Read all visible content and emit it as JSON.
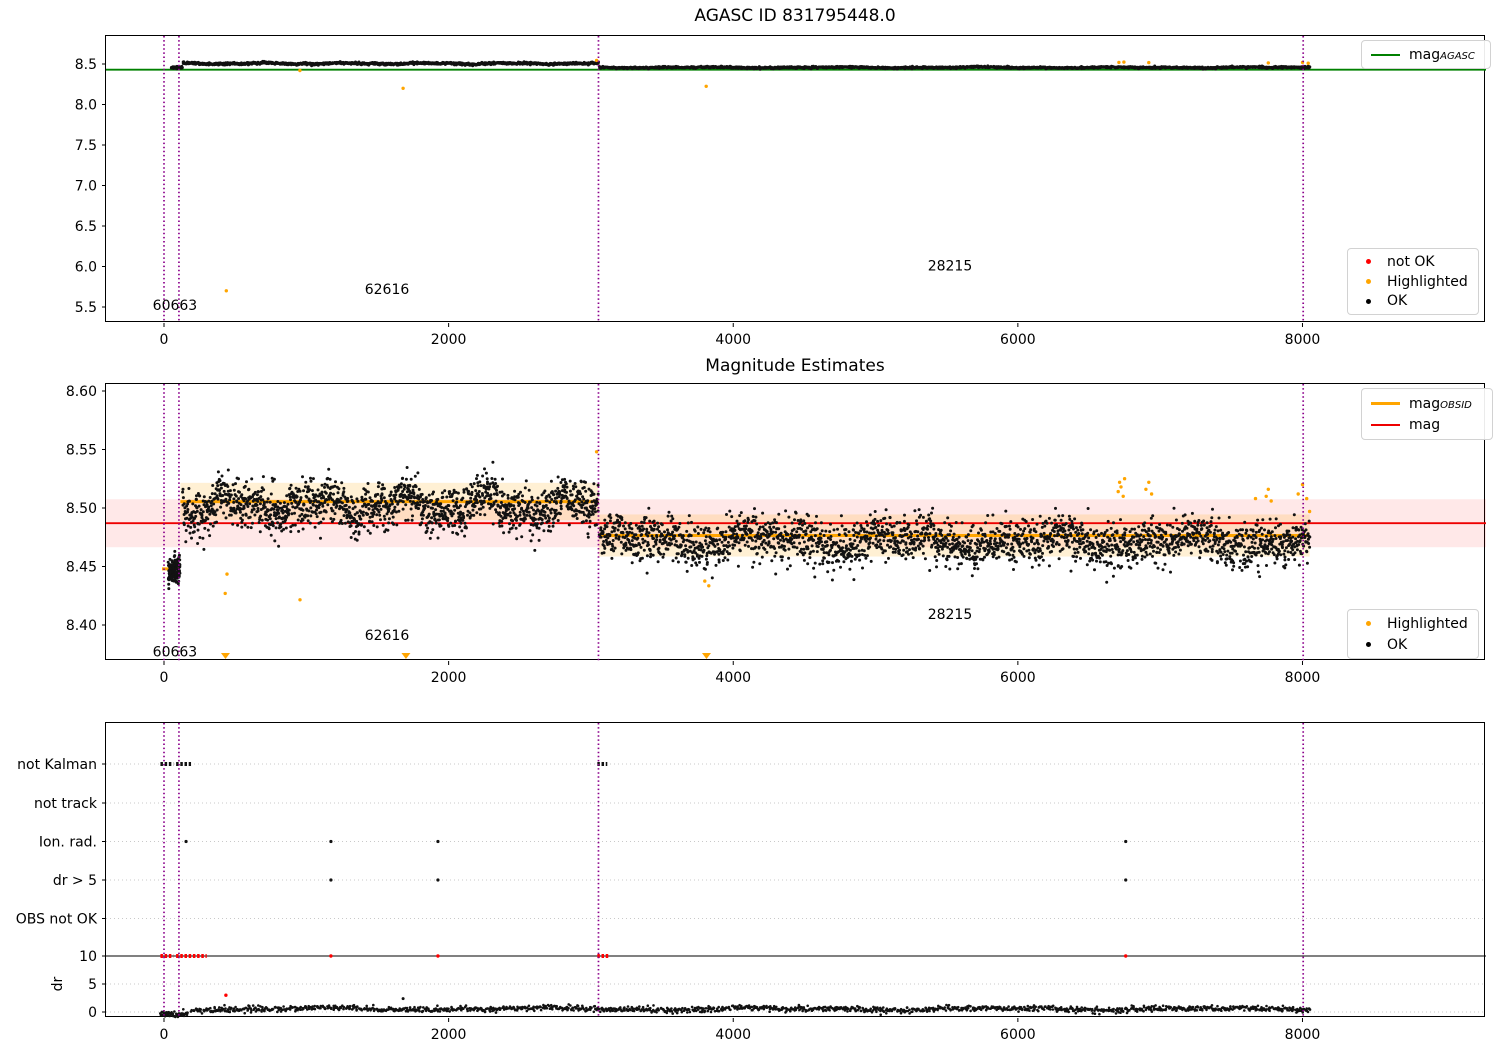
{
  "colors": {
    "ok": "#121212",
    "highlighted": "#ffa500",
    "not_ok": "#ff0000",
    "mag_agasc": "#008000",
    "mag_line": "#ee0000",
    "mag_obsid": "#ffa500",
    "vline": "#8b008b",
    "band_red": "rgba(255,0,0,0.09)",
    "band_orange": "rgba(255,166,0,0.17)",
    "grid": "#c9c9c9",
    "axis": "#000000"
  },
  "chart_data": [
    {
      "type": "scatter",
      "title": "AGASC ID 831795448.0",
      "xlim": [
        -410,
        9300
      ],
      "ylim": [
        5.3,
        8.85
      ],
      "xtick_vals": [
        0,
        2000,
        4000,
        6000,
        8000
      ],
      "xticks": [
        "0",
        "2000",
        "4000",
        "6000",
        "8000"
      ],
      "ytick_vals": [
        5.5,
        6.0,
        6.5,
        7.0,
        7.5,
        8.0,
        8.5
      ],
      "yticks": [
        "5.5",
        "6.0",
        "6.5",
        "7.0",
        "7.5",
        "8.0",
        "8.5"
      ],
      "mag_agasc": 8.43,
      "vlines": [
        0,
        105,
        3053,
        8005
      ],
      "ok_clusters": [
        {
          "x0": 52,
          "x1": 128,
          "y": 8.457,
          "amp": 0.003,
          "spread": 0.005,
          "n": 90,
          "seed": 11
        },
        {
          "x0": 132,
          "x1": 3052,
          "y": 8.506,
          "amp": 0.011,
          "spread": 0.0065,
          "n": 1150,
          "seed": 12
        },
        {
          "x0": 3062,
          "x1": 8052,
          "y": 8.457,
          "amp": 0.007,
          "spread": 0.0055,
          "n": 1750,
          "seed": 13
        }
      ],
      "highlighted_points": [
        [
          438,
          5.7
        ],
        [
          955,
          8.42
        ],
        [
          1680,
          8.2
        ],
        [
          3040,
          8.545
        ],
        [
          3810,
          8.225
        ],
        [
          6710,
          8.52
        ],
        [
          6745,
          8.524
        ],
        [
          6920,
          8.517
        ],
        [
          7760,
          8.514
        ],
        [
          8000,
          8.52
        ],
        [
          8040,
          8.51
        ]
      ],
      "annotations": [
        {
          "text": "60663",
          "x": 77,
          "y": 5.46
        },
        {
          "text": "62616",
          "x": 1567,
          "y": 5.66
        },
        {
          "text": "28215",
          "x": 5523,
          "y": 5.95
        }
      ],
      "legend_line": {
        "main": "mag",
        "sub": "AGASC"
      },
      "legend_markers": {
        "items": [
          {
            "label": "not OK",
            "color": "#ff0000"
          },
          {
            "label": "Highlighted",
            "color": "#ffa500"
          },
          {
            "label": "OK",
            "color": "#000000"
          }
        ]
      }
    },
    {
      "type": "scatter",
      "title": "Magnitude Estimates",
      "xlim": [
        -410,
        9300
      ],
      "ylim": [
        8.369,
        8.606
      ],
      "xtick_vals": [
        0,
        2000,
        4000,
        6000,
        8000
      ],
      "xticks": [
        "0",
        "2000",
        "4000",
        "6000",
        "8000"
      ],
      "ytick_vals": [
        8.4,
        8.45,
        8.5,
        8.55,
        8.6
      ],
      "yticks": [
        "8.40",
        "8.45",
        "8.50",
        "8.55",
        "8.60"
      ],
      "mag": 8.487,
      "mag_band": [
        8.4665,
        8.5075
      ],
      "obsid_segments": [
        {
          "x0": -14,
          "x1": 100,
          "y": 8.448
        },
        {
          "x0": 115,
          "x1": 3053,
          "y": 8.5055,
          "band": [
            8.4895,
            8.5215
          ]
        },
        {
          "x0": 3053,
          "x1": 8050,
          "y": 8.4765,
          "band": [
            8.4585,
            8.4945
          ]
        }
      ],
      "vlines": [
        0,
        105,
        3053,
        8005
      ],
      "ok_clusters": [
        {
          "x0": 30,
          "x1": 112,
          "y": 8.4465,
          "amp": 0.004,
          "spread": 0.0055,
          "n": 140,
          "seed": 21
        },
        {
          "x0": 132,
          "x1": 3052,
          "y": 8.502,
          "amp": 0.012,
          "spread": 0.0095,
          "n": 1550,
          "seed": 22
        },
        {
          "x0": 3060,
          "x1": 8052,
          "y": 8.4715,
          "amp": 0.008,
          "spread": 0.0095,
          "n": 2350,
          "seed": 23
        }
      ],
      "highlighted_points": [
        [
          430,
          8.427
        ],
        [
          443,
          8.4435
        ],
        [
          956,
          8.4215
        ],
        [
          3040,
          8.548
        ],
        [
          3800,
          8.4375
        ],
        [
          3828,
          8.4335
        ],
        [
          6705,
          8.514
        ],
        [
          6715,
          8.522
        ],
        [
          6725,
          8.518
        ],
        [
          6740,
          8.51
        ],
        [
          6750,
          8.525
        ],
        [
          6900,
          8.516
        ],
        [
          6920,
          8.522
        ],
        [
          6940,
          8.512
        ],
        [
          7670,
          8.508
        ],
        [
          7745,
          8.51
        ],
        [
          7760,
          8.516
        ],
        [
          7780,
          8.506
        ],
        [
          7970,
          8.512
        ],
        [
          8000,
          8.52
        ],
        [
          8030,
          8.508
        ],
        [
          8050,
          8.497
        ]
      ],
      "low_triangles": [
        432,
        1700,
        3812
      ],
      "annotations": [
        {
          "text": "60663",
          "x": 77,
          "y": 8.373
        },
        {
          "text": "62616",
          "x": 1567,
          "y": 8.387
        },
        {
          "text": "28215",
          "x": 5523,
          "y": 8.405
        }
      ],
      "legend_lines": {
        "items": [
          {
            "main": "mag",
            "sub": "OBSID",
            "color": "#ffa500"
          },
          {
            "main": "mag",
            "sub": "",
            "color": "#ee0000"
          }
        ]
      },
      "legend_markers": {
        "items": [
          {
            "label": "Highlighted",
            "color": "#ffa500"
          },
          {
            "label": "OK",
            "color": "#000000"
          }
        ]
      }
    },
    {
      "type": "event-flags",
      "rows": [
        {
          "label": "not Kalman",
          "segments": [
            [
              -25,
              65
            ],
            [
              85,
              190
            ],
            [
              3045,
              3115
            ]
          ],
          "points": []
        },
        {
          "label": "not track",
          "segments": [],
          "points": []
        },
        {
          "label": "Ion. rad.",
          "segments": [],
          "points": [
            155,
            1173,
            1925,
            6758
          ]
        },
        {
          "label": "dr > 5",
          "segments": [],
          "points": [
            1173,
            1925,
            6758
          ]
        },
        {
          "label": "OBS not OK",
          "segments": [],
          "points": []
        }
      ],
      "dr": {
        "ylabel": "dr",
        "tick_vals": [
          10,
          5,
          0
        ],
        "ticks": [
          "10",
          "5",
          "0"
        ],
        "hline": 10,
        "red_segments": [
          [
            -25,
            65
          ],
          [
            85,
            300
          ],
          [
            3045,
            3125
          ]
        ],
        "red_points": [
          [
            1173,
            10
          ],
          [
            1925,
            10
          ],
          [
            6758,
            10
          ],
          [
            435,
            3.0
          ]
        ],
        "black_points": [
          [
            1680,
            2.4
          ]
        ],
        "ok_band": {
          "x0": 195,
          "x1": 8052,
          "y": 0.55,
          "amp": 0.3,
          "spread": 0.25,
          "n": 1500,
          "seed": 31
        },
        "left_band": {
          "x0": -25,
          "x1": 168,
          "y": -0.3,
          "amp": 0.1,
          "spread": 0.25,
          "n": 60,
          "seed": 32
        }
      },
      "vlines": [
        0,
        105,
        3053,
        8005
      ],
      "xtick_vals": [
        0,
        2000,
        4000,
        6000,
        8000
      ],
      "xticks": [
        "0",
        "2000",
        "4000",
        "6000",
        "8000"
      ]
    }
  ]
}
